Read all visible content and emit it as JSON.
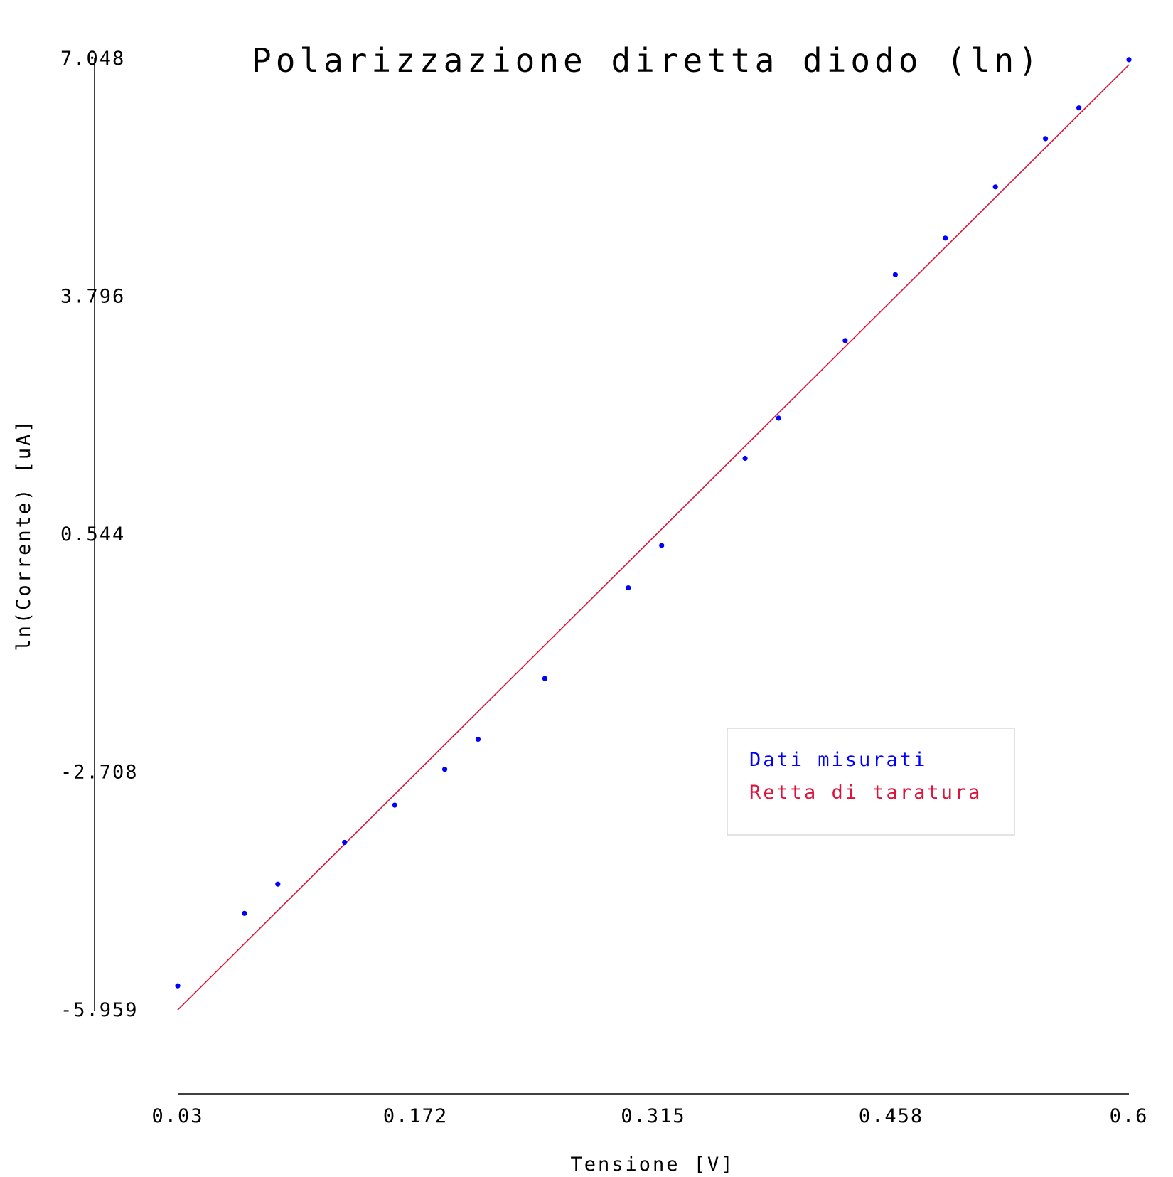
{
  "chart_data": {
    "type": "scatter",
    "title": "Polarizzazione diretta diodo (ln)",
    "xlabel": "Tensione [V]",
    "ylabel": "ln(Corrente) [uA]",
    "xlim": [
      0.03,
      0.6
    ],
    "ylim": [
      -5.959,
      7.048
    ],
    "x_ticks": [
      "0.03",
      "0.172",
      "0.315",
      "0.458",
      "0.6"
    ],
    "y_ticks": [
      "7.048",
      "3.796",
      "0.544",
      "-2.708",
      "-5.959"
    ],
    "grid": false,
    "legend_position": "lower-right",
    "series": [
      {
        "name": "Dati misurati",
        "kind": "scatter",
        "color": "#0000ff",
        "points": [
          [
            0.03,
            -5.63
          ],
          [
            0.07,
            -4.64
          ],
          [
            0.09,
            -4.24
          ],
          [
            0.13,
            -3.67
          ],
          [
            0.16,
            -3.16
          ],
          [
            0.19,
            -2.67
          ],
          [
            0.21,
            -2.26
          ],
          [
            0.25,
            -1.43
          ],
          [
            0.3,
            -0.19
          ],
          [
            0.32,
            0.39
          ],
          [
            0.37,
            1.58
          ],
          [
            0.39,
            2.13
          ],
          [
            0.43,
            3.19
          ],
          [
            0.46,
            4.09
          ],
          [
            0.49,
            4.59
          ],
          [
            0.52,
            5.29
          ],
          [
            0.55,
            5.95
          ],
          [
            0.57,
            6.37
          ],
          [
            0.6,
            7.03
          ]
        ]
      },
      {
        "name": "Retta di taratura",
        "kind": "line",
        "color": "#dc143c",
        "points": [
          [
            0.03,
            -5.96
          ],
          [
            0.6,
            6.96
          ]
        ]
      }
    ]
  }
}
